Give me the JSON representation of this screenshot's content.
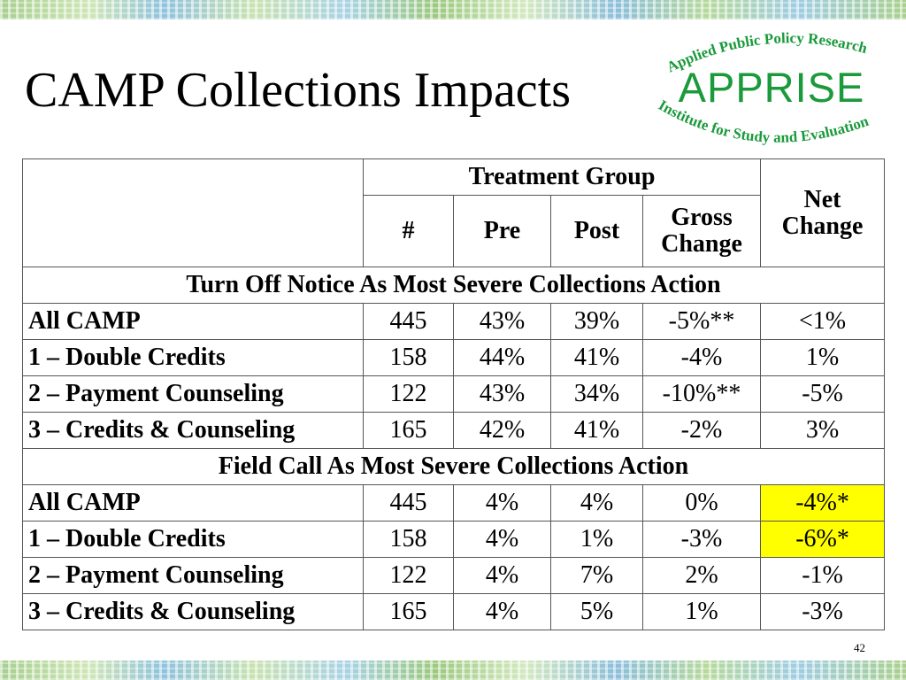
{
  "title": "CAMP Collections Impacts",
  "logo": {
    "top_text": "Applied Public Policy Research",
    "name": "APPRISE",
    "bottom_text": "Institute for Study and Evaluation",
    "color": "#1a9a3b"
  },
  "table": {
    "group_header": "Treatment Group",
    "net_header": "Net Change",
    "col_count": "#",
    "col_pre": "Pre",
    "col_post": "Post",
    "col_gross": "Gross Change",
    "sections": [
      {
        "title": "Turn Off Notice As Most Severe Collections Action",
        "rows": [
          {
            "label": "All CAMP",
            "count": "445",
            "pre": "43%",
            "post": "39%",
            "gross": "-5%**",
            "net": "<1%"
          },
          {
            "label": "1 – Double Credits",
            "count": "158",
            "pre": "44%",
            "post": "41%",
            "gross": "-4%",
            "net": "1%"
          },
          {
            "label": "2 – Payment Counseling",
            "count": "122",
            "pre": "43%",
            "post": "34%",
            "gross": "-10%**",
            "net": "-5%"
          },
          {
            "label": "3 – Credits & Counseling",
            "count": "165",
            "pre": "42%",
            "post": "41%",
            "gross": "-2%",
            "net": "3%"
          }
        ]
      },
      {
        "title": "Field Call As Most Severe Collections Action",
        "rows": [
          {
            "label": "All CAMP",
            "count": "445",
            "pre": "4%",
            "post": "4%",
            "gross": "0%",
            "net": "-4%*",
            "highlight": true
          },
          {
            "label": "1 – Double Credits",
            "count": "158",
            "pre": "4%",
            "post": "1%",
            "gross": "-3%",
            "net": "-6%*",
            "highlight": true
          },
          {
            "label": "2 – Payment Counseling",
            "count": "122",
            "pre": "4%",
            "post": "7%",
            "gross": "2%",
            "net": "-1%"
          },
          {
            "label": "3 – Credits & Counseling",
            "count": "165",
            "pre": "4%",
            "post": "5%",
            "gross": "1%",
            "net": "-3%"
          }
        ]
      }
    ]
  },
  "highlight_color": "#ffff00",
  "page_number": "42"
}
